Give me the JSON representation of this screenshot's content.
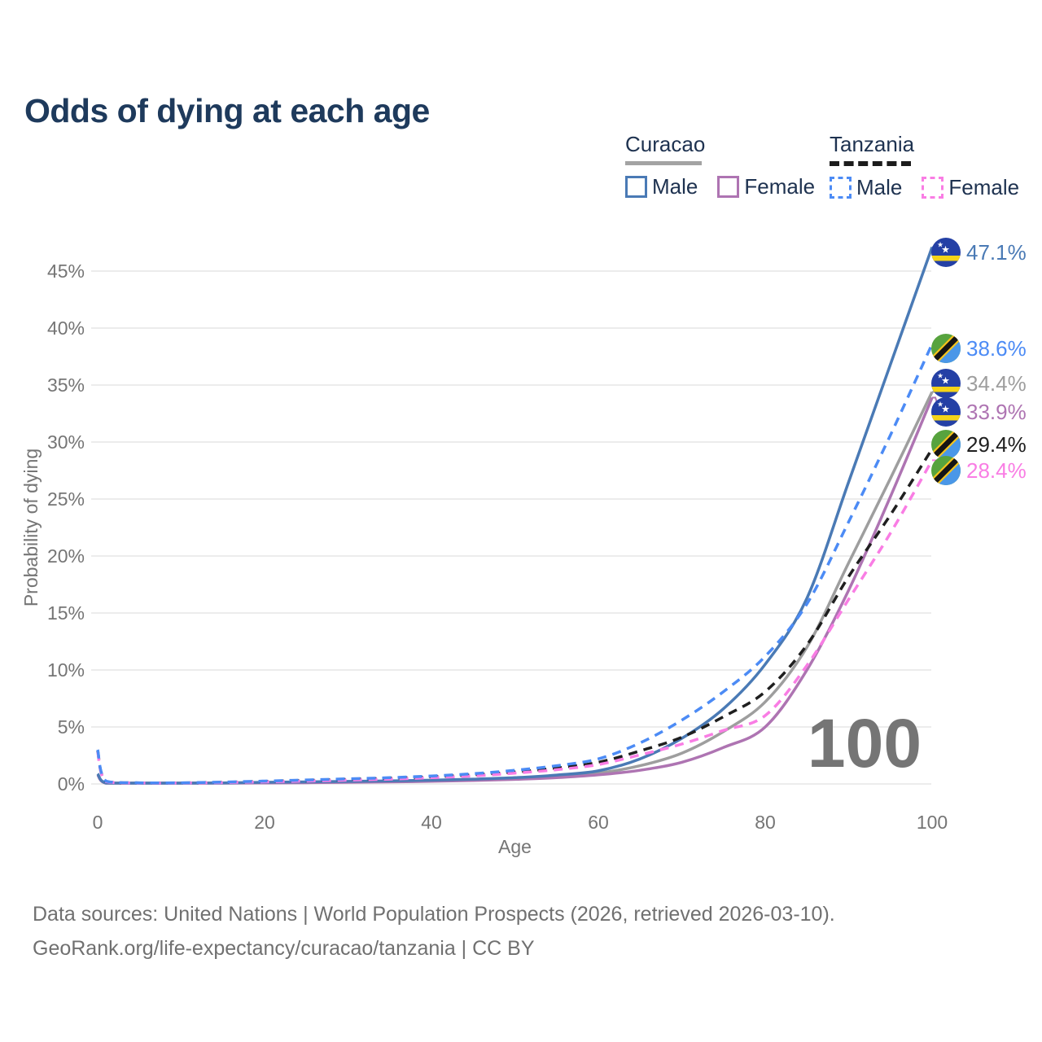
{
  "title": "Odds of dying at each age",
  "legend": {
    "groups": [
      {
        "country": "Curacao",
        "line_style": "solid",
        "underline_color": "#a3a3a3",
        "items": [
          {
            "label": "Male",
            "color": "#4a7ab5"
          },
          {
            "label": "Female",
            "color": "#ae74b2"
          }
        ]
      },
      {
        "country": "Tanzania",
        "line_style": "dashed",
        "underline_color": "#1c1c1c",
        "items": [
          {
            "label": "Male",
            "color": "#4c8bf5"
          },
          {
            "label": "Female",
            "color": "#f97de4"
          }
        ]
      }
    ]
  },
  "footer": {
    "line1": "Data sources: United Nations | World Population Prospects (2026, retrieved 2026-03-10).",
    "line2": "GeoRank.org/life-expectancy/curacao/tanzania | CC BY"
  },
  "chart_data": {
    "type": "line",
    "title": "Odds of dying at each age",
    "xlabel": "Age",
    "ylabel": "Probability of dying",
    "watermark": "100",
    "xlim": [
      0,
      100
    ],
    "ylim_percent": [
      0,
      47.5
    ],
    "grid": "horizontal",
    "x_tick_values": [
      0,
      20,
      40,
      60,
      80,
      100
    ],
    "x_tick_labels": [
      "0",
      "20",
      "40",
      "60",
      "80",
      "100"
    ],
    "y_tick_values": [
      0,
      5,
      10,
      15,
      20,
      25,
      30,
      35,
      40,
      45
    ],
    "y_tick_labels": [
      "0%",
      "5%",
      "10%",
      "15%",
      "20%",
      "25%",
      "30%",
      "35%",
      "40%",
      "45%"
    ],
    "ages": [
      0,
      1,
      5,
      10,
      15,
      20,
      25,
      30,
      35,
      40,
      45,
      50,
      55,
      60,
      65,
      70,
      75,
      80,
      85,
      90,
      95,
      100
    ],
    "series": [
      {
        "name": "Curacao Male",
        "country": "Curacao",
        "sex": "Male",
        "line_style": "solid",
        "color": "#4a7ab5",
        "flag": "curacao",
        "end_label": "47.1%",
        "end_value_percent": 47.1,
        "values_percent": [
          0.9,
          0.08,
          0.04,
          0.05,
          0.09,
          0.14,
          0.18,
          0.22,
          0.27,
          0.33,
          0.42,
          0.55,
          0.78,
          1.15,
          2.2,
          4.0,
          6.6,
          10.5,
          16.3,
          26.5,
          36.8,
          47.1
        ]
      },
      {
        "name": "Tanzania Male",
        "country": "Tanzania",
        "sex": "Male",
        "line_style": "dashed",
        "color": "#4c8bf5",
        "flag": "tanzania",
        "end_label": "38.6%",
        "end_value_percent": 38.6,
        "values_percent": [
          3.0,
          0.25,
          0.1,
          0.1,
          0.16,
          0.25,
          0.35,
          0.45,
          0.55,
          0.7,
          0.9,
          1.2,
          1.6,
          2.2,
          3.6,
          5.6,
          8.1,
          11.2,
          15.8,
          23.0,
          30.6,
          38.6
        ]
      },
      {
        "name": "Curacao",
        "country": "Curacao",
        "sex": "Both",
        "line_style": "solid",
        "color": "#9e9e9e",
        "flag": "curacao",
        "end_label": "34.4%",
        "end_value_percent": 34.4,
        "values_percent": [
          0.85,
          0.07,
          0.04,
          0.04,
          0.08,
          0.12,
          0.15,
          0.19,
          0.23,
          0.28,
          0.36,
          0.48,
          0.65,
          0.95,
          1.6,
          2.7,
          4.6,
          7.2,
          12.0,
          19.4,
          26.8,
          34.4
        ]
      },
      {
        "name": "Curacao Female",
        "country": "Curacao",
        "sex": "Female",
        "line_style": "solid",
        "color": "#ae74b2",
        "flag": "curacao",
        "end_label": "33.9%",
        "end_value_percent": 33.9,
        "values_percent": [
          0.8,
          0.06,
          0.03,
          0.04,
          0.06,
          0.09,
          0.11,
          0.14,
          0.18,
          0.23,
          0.3,
          0.4,
          0.55,
          0.8,
          1.2,
          1.9,
          3.2,
          5.0,
          10.0,
          17.0,
          25.2,
          33.9
        ]
      },
      {
        "name": "Tanzania",
        "country": "Tanzania",
        "sex": "Both",
        "line_style": "dashed",
        "color": "#1f1f1f",
        "flag": "tanzania",
        "end_label": "29.4%",
        "end_value_percent": 29.4,
        "values_percent": [
          2.9,
          0.22,
          0.09,
          0.09,
          0.14,
          0.22,
          0.3,
          0.4,
          0.5,
          0.62,
          0.8,
          1.05,
          1.4,
          1.9,
          2.9,
          4.1,
          5.9,
          8.1,
          12.2,
          18.2,
          23.6,
          29.4
        ]
      },
      {
        "name": "Tanzania Female",
        "country": "Tanzania",
        "sex": "Female",
        "line_style": "dashed",
        "color": "#f97de4",
        "flag": "tanzania",
        "end_label": "28.4%",
        "end_value_percent": 28.4,
        "values_percent": [
          2.8,
          0.2,
          0.08,
          0.08,
          0.12,
          0.18,
          0.25,
          0.33,
          0.42,
          0.55,
          0.7,
          0.95,
          1.25,
          1.7,
          2.55,
          3.5,
          4.7,
          6.0,
          10.4,
          16.2,
          22.0,
          28.4
        ]
      }
    ]
  }
}
